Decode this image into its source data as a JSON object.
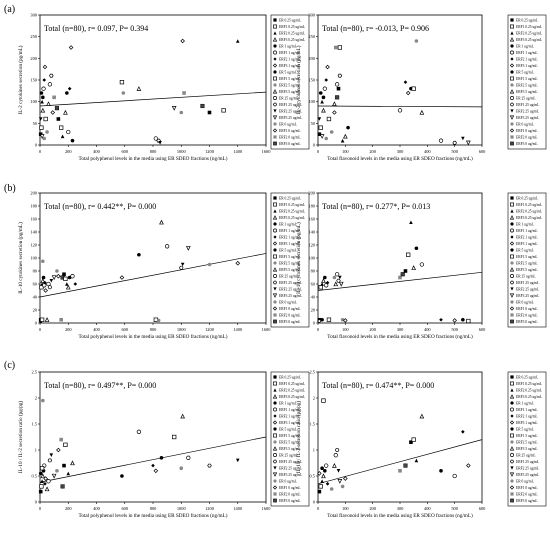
{
  "chart_data": [
    {
      "type": "scatter",
      "panel": "(a)",
      "stat": "Total (n=80), r= 0.097, P= 0.394",
      "xlabel": "Total polyphenol levels in the media using ER SDEO fractions (ng/mL)",
      "ylabel": "IL-2 cytokines secretion (pg/mL)",
      "xlim": [
        0,
        1600
      ],
      "ylim": [
        0,
        300
      ],
      "xticks": [
        0,
        200,
        400,
        600,
        800,
        1000,
        1200,
        1400,
        1600
      ],
      "yticks": [
        0,
        50,
        100,
        150,
        200,
        250,
        300
      ],
      "trendline": [
        [
          0,
          90
        ],
        [
          1600,
          122
        ]
      ],
      "points": [
        [
          5,
          25
        ],
        [
          10,
          40
        ],
        [
          15,
          100
        ],
        [
          20,
          80
        ],
        [
          10,
          120
        ],
        [
          25,
          130
        ],
        [
          30,
          150
        ],
        [
          35,
          180
        ],
        [
          20,
          110
        ],
        [
          40,
          60
        ],
        [
          50,
          30
        ],
        [
          60,
          95
        ],
        [
          70,
          140
        ],
        [
          80,
          160
        ],
        [
          5,
          60
        ],
        [
          15,
          20
        ],
        [
          30,
          15
        ],
        [
          90,
          75
        ],
        [
          100,
          110
        ],
        [
          120,
          85
        ],
        [
          130,
          60
        ],
        [
          150,
          40
        ],
        [
          160,
          20
        ],
        [
          180,
          75
        ],
        [
          190,
          120
        ],
        [
          200,
          30
        ],
        [
          210,
          130
        ],
        [
          220,
          225
        ],
        [
          230,
          10
        ],
        [
          580,
          145
        ],
        [
          590,
          120
        ],
        [
          700,
          130
        ],
        [
          820,
          15
        ],
        [
          840,
          10
        ],
        [
          850,
          5
        ],
        [
          950,
          85
        ],
        [
          1000,
          75
        ],
        [
          1010,
          240
        ],
        [
          1020,
          120
        ],
        [
          1150,
          90
        ],
        [
          1200,
          75
        ],
        [
          1300,
          80
        ],
        [
          1400,
          240
        ]
      ]
    },
    {
      "type": "scatter",
      "panel": "(a)",
      "stat": "Total (n=80), r= -0.013, P= 0.906",
      "xlabel": "Total flavonoid levels in the media using ER SDEO fractions (ng/mL)",
      "ylabel": "IL-2 cytokines secretion (pg/mL)",
      "xlim": [
        0,
        600
      ],
      "ylim": [
        0,
        300
      ],
      "xticks": [
        0,
        100,
        200,
        300,
        400,
        500,
        600
      ],
      "yticks": [
        0,
        50,
        100,
        150,
        200,
        250,
        300
      ],
      "trendline": [
        [
          0,
          90
        ],
        [
          600,
          88
        ]
      ],
      "points": [
        [
          5,
          25
        ],
        [
          10,
          40
        ],
        [
          15,
          100
        ],
        [
          20,
          80
        ],
        [
          10,
          120
        ],
        [
          25,
          130
        ],
        [
          30,
          150
        ],
        [
          35,
          180
        ],
        [
          20,
          110
        ],
        [
          40,
          60
        ],
        [
          50,
          30
        ],
        [
          60,
          95
        ],
        [
          70,
          140
        ],
        [
          80,
          160
        ],
        [
          5,
          60
        ],
        [
          15,
          20
        ],
        [
          30,
          15
        ],
        [
          60,
          75
        ],
        [
          65,
          225
        ],
        [
          70,
          110
        ],
        [
          75,
          130
        ],
        [
          80,
          225
        ],
        [
          90,
          10
        ],
        [
          100,
          20
        ],
        [
          110,
          40
        ],
        [
          300,
          80
        ],
        [
          320,
          145
        ],
        [
          330,
          120
        ],
        [
          340,
          130
        ],
        [
          350,
          130
        ],
        [
          360,
          240
        ],
        [
          380,
          75
        ],
        [
          450,
          10
        ],
        [
          500,
          5
        ],
        [
          530,
          15
        ],
        [
          550,
          5
        ]
      ]
    },
    {
      "type": "scatter",
      "panel": "(b)",
      "stat": "Total (n=80), r= 0.442**, P= 0.000",
      "xlabel": "Total polyphenol levels in the media using ER SDEO fractions (ng/mL)",
      "ylabel": "IL-10 cytokines secretion (pg/mL)",
      "xlim": [
        0,
        1600
      ],
      "ylim": [
        0,
        200
      ],
      "xticks": [
        0,
        200,
        400,
        600,
        800,
        1000,
        1200,
        1400,
        1600
      ],
      "yticks": [
        0,
        20,
        40,
        60,
        80,
        100,
        120,
        140,
        160,
        180,
        200
      ],
      "trendline": [
        [
          0,
          40
        ],
        [
          1600,
          107
        ]
      ],
      "points": [
        [
          5,
          5
        ],
        [
          10,
          55
        ],
        [
          15,
          60
        ],
        [
          20,
          65
        ],
        [
          25,
          70
        ],
        [
          30,
          58
        ],
        [
          35,
          62
        ],
        [
          40,
          50
        ],
        [
          5,
          3
        ],
        [
          15,
          5
        ],
        [
          20,
          95
        ],
        [
          50,
          5
        ],
        [
          60,
          60
        ],
        [
          70,
          55
        ],
        [
          80,
          65
        ],
        [
          100,
          70
        ],
        [
          120,
          80
        ],
        [
          130,
          72
        ],
        [
          150,
          5
        ],
        [
          160,
          70
        ],
        [
          170,
          75
        ],
        [
          180,
          68
        ],
        [
          190,
          60
        ],
        [
          200,
          55
        ],
        [
          210,
          70
        ],
        [
          230,
          72
        ],
        [
          250,
          60
        ],
        [
          580,
          70
        ],
        [
          700,
          105
        ],
        [
          820,
          5
        ],
        [
          840,
          4
        ],
        [
          860,
          155
        ],
        [
          900,
          118
        ],
        [
          1000,
          85
        ],
        [
          1010,
          90
        ],
        [
          1050,
          115
        ],
        [
          1200,
          90
        ],
        [
          1400,
          92
        ]
      ]
    },
    {
      "type": "scatter",
      "panel": "(b)",
      "stat": "Total (n=80), r= 0.277*, P= 0.013",
      "xlabel": "Total flavonoid levels in the media using ER SDEO fractions (ng/mL)",
      "ylabel": "IL-10 cytokines secretion (pg/mL)",
      "xlim": [
        0,
        600
      ],
      "ylim": [
        0,
        200
      ],
      "xticks": [
        0,
        100,
        200,
        300,
        400,
        500,
        600
      ],
      "yticks": [
        0,
        20,
        40,
        60,
        80,
        100,
        120,
        140,
        160,
        180,
        200
      ],
      "trendline": [
        [
          0,
          50
        ],
        [
          600,
          78
        ]
      ],
      "points": [
        [
          5,
          5
        ],
        [
          10,
          55
        ],
        [
          15,
          60
        ],
        [
          20,
          65
        ],
        [
          25,
          70
        ],
        [
          30,
          58
        ],
        [
          35,
          62
        ],
        [
          5,
          3
        ],
        [
          15,
          5
        ],
        [
          40,
          5
        ],
        [
          60,
          70
        ],
        [
          65,
          60
        ],
        [
          70,
          75
        ],
        [
          75,
          65
        ],
        [
          80,
          70
        ],
        [
          85,
          60
        ],
        [
          90,
          5
        ],
        [
          100,
          4
        ],
        [
          300,
          70
        ],
        [
          310,
          75
        ],
        [
          320,
          80
        ],
        [
          330,
          105
        ],
        [
          340,
          155
        ],
        [
          350,
          85
        ],
        [
          360,
          115
        ],
        [
          380,
          90
        ],
        [
          450,
          5
        ],
        [
          500,
          4
        ],
        [
          530,
          5
        ],
        [
          550,
          3
        ]
      ]
    },
    {
      "type": "scatter",
      "panel": "(c)",
      "stat": "Total (n=80), r= 0.497**, P= 0.000",
      "xlabel": "Total polyphenol levels in the media using ER SDEO fractions (ng/mL)",
      "ylabel": "IL-10 / IL-2 secretion ratio (pg/pg)",
      "xlim": [
        0,
        1600
      ],
      "ylim": [
        0,
        2.5
      ],
      "xticks": [
        0,
        200,
        400,
        600,
        800,
        1000,
        1200,
        1400,
        1600
      ],
      "yticks": [
        0,
        0.5,
        1,
        1.5,
        2,
        2.5
      ],
      "trendline": [
        [
          0,
          0.38
        ],
        [
          1600,
          1.25
        ]
      ],
      "points": [
        [
          5,
          0.2
        ],
        [
          10,
          0.3
        ],
        [
          15,
          0.4
        ],
        [
          20,
          0.5
        ],
        [
          25,
          0.6
        ],
        [
          30,
          0.7
        ],
        [
          35,
          0.35
        ],
        [
          40,
          0.45
        ],
        [
          5,
          0.55
        ],
        [
          15,
          0.65
        ],
        [
          20,
          1.95
        ],
        [
          50,
          0.25
        ],
        [
          60,
          0.4
        ],
        [
          70,
          0.8
        ],
        [
          80,
          0.9
        ],
        [
          100,
          0.5
        ],
        [
          120,
          0.6
        ],
        [
          130,
          1.0
        ],
        [
          150,
          1.2
        ],
        [
          160,
          0.3
        ],
        [
          170,
          0.7
        ],
        [
          180,
          1.1
        ],
        [
          200,
          0.55
        ],
        [
          230,
          0.75
        ],
        [
          580,
          0.5
        ],
        [
          700,
          1.35
        ],
        [
          800,
          0.7
        ],
        [
          820,
          0.6
        ],
        [
          860,
          0.85
        ],
        [
          950,
          1.25
        ],
        [
          1000,
          0.65
        ],
        [
          1010,
          1.65
        ],
        [
          1050,
          0.85
        ],
        [
          1200,
          0.7
        ],
        [
          1400,
          0.8
        ]
      ]
    },
    {
      "type": "scatter",
      "panel": "(c)",
      "stat": "Total (n=80), r= 0.474**, P= 0.000",
      "xlabel": "Total flavonoid levels in the media using ER SDEO fractions (ng/mL)",
      "ylabel": "IL-10 / IL-2 secretion ratio (pg/pg)",
      "xlim": [
        0,
        600
      ],
      "ylim": [
        0,
        2.5
      ],
      "xticks": [
        0,
        100,
        200,
        300,
        400,
        500,
        600
      ],
      "yticks": [
        0,
        0.5,
        1,
        1.5,
        2,
        2.5
      ],
      "trendline": [
        [
          0,
          0.35
        ],
        [
          600,
          1.2
        ]
      ],
      "points": [
        [
          5,
          0.2
        ],
        [
          10,
          0.3
        ],
        [
          15,
          0.4
        ],
        [
          20,
          0.5
        ],
        [
          25,
          0.6
        ],
        [
          30,
          0.7
        ],
        [
          35,
          0.35
        ],
        [
          5,
          0.55
        ],
        [
          15,
          0.65
        ],
        [
          20,
          1.95
        ],
        [
          50,
          0.25
        ],
        [
          60,
          0.7
        ],
        [
          65,
          0.9
        ],
        [
          70,
          1.0
        ],
        [
          75,
          0.6
        ],
        [
          80,
          0.4
        ],
        [
          90,
          0.3
        ],
        [
          100,
          0.45
        ],
        [
          300,
          0.6
        ],
        [
          320,
          0.7
        ],
        [
          340,
          1.15
        ],
        [
          350,
          1.2
        ],
        [
          360,
          0.8
        ],
        [
          380,
          1.65
        ],
        [
          450,
          0.6
        ],
        [
          500,
          0.5
        ],
        [
          530,
          1.35
        ],
        [
          550,
          0.7
        ]
      ]
    }
  ],
  "panel_letters": [
    "(a)",
    "(b)",
    "(c)"
  ],
  "legend_items": [
    {
      "label": "ER 0.25 ug/mL",
      "marker": "square-filled"
    },
    {
      "label": "ERF1 0.25 ug/mL",
      "marker": "square-open"
    },
    {
      "label": "ERF2 0.25 ug/mL",
      "marker": "triangle-filled"
    },
    {
      "label": "ERF3 0.25 ug/mL",
      "marker": "triangle-open"
    },
    {
      "label": "ER 1 ug/mL",
      "marker": "circle-filled"
    },
    {
      "label": "ERF1 1 ug/mL",
      "marker": "circle-open"
    },
    {
      "label": "ERF2 1 ug/mL",
      "marker": "diamond-filled"
    },
    {
      "label": "ERF3 1 ug/mL",
      "marker": "diamond-open"
    },
    {
      "label": "ER 5 ug/mL",
      "marker": "circle-filled"
    },
    {
      "label": "ERF1 5 ug/mL",
      "marker": "square-open"
    },
    {
      "label": "ERF2 5 ug/mL",
      "marker": "circle-gray"
    },
    {
      "label": "ERF3 5 ug/mL",
      "marker": "triangle-open"
    },
    {
      "label": "ER 25 ug/mL",
      "marker": "circle-open"
    },
    {
      "label": "ERF1 25 ug/mL",
      "marker": "hexagon-open"
    },
    {
      "label": "ERF2 25 ug/mL",
      "marker": "triangle-down-filled"
    },
    {
      "label": "ERF3 25 ug/mL",
      "marker": "triangle-down-open"
    },
    {
      "label": "ER 0 ug/mL",
      "marker": "circle-gray"
    },
    {
      "label": "ERF1 0 ug/mL",
      "marker": "diamond-open"
    },
    {
      "label": "ERF2 0 ug/mL",
      "marker": "square-gray"
    },
    {
      "label": "ERF3 0 ug/mL",
      "marker": "square-half"
    }
  ],
  "colors": {
    "axis": "#000000",
    "marker_fill": "#000000",
    "marker_gray": "#888888"
  }
}
